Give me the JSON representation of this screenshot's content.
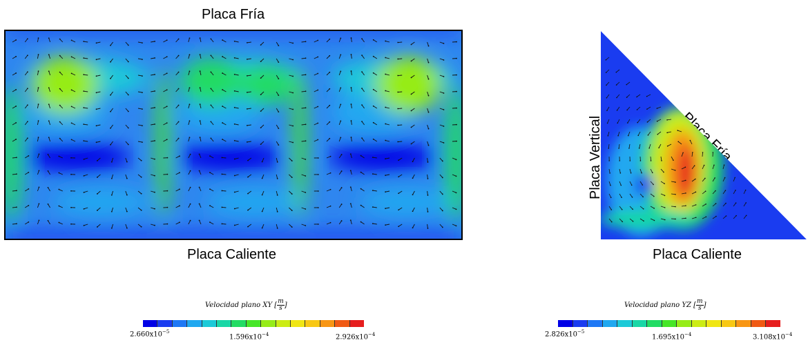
{
  "left_panel": {
    "top_label": "Placa Fría",
    "bottom_label": "Placa Caliente"
  },
  "right_panel": {
    "cold_plate_label": "Placa Fría",
    "vertical_plate_label": "Placa Vertical",
    "hot_plate_label": "Placa Caliente"
  },
  "colorbar_xy": {
    "title_prefix": "Velocidad plano XY [",
    "unit_num": "m",
    "unit_den": "s",
    "title_suffix": "]",
    "tick_min": "2.660x10",
    "tick_min_exp": "−5",
    "tick_mid": "1.596x10",
    "tick_mid_exp": "−4",
    "tick_max": "2.926x10",
    "tick_max_exp": "−4"
  },
  "colorbar_yz": {
    "title_prefix": "Velocidad plano YZ [",
    "unit_num": "m",
    "unit_den": "s",
    "title_suffix": "]",
    "tick_min": "2.826x10",
    "tick_min_exp": "−5",
    "tick_mid": "1.695x10",
    "tick_mid_exp": "−4",
    "tick_max": "3.108x10",
    "tick_max_exp": "−4"
  },
  "colormap": [
    "#0000e6",
    "#1a3cf0",
    "#1e78f5",
    "#20a8f0",
    "#1ccad8",
    "#19d7a6",
    "#22dc64",
    "#46e628",
    "#96ec18",
    "#ccec14",
    "#f0e614",
    "#f8c814",
    "#f89614",
    "#f05a14",
    "#e61e1e"
  ]
}
